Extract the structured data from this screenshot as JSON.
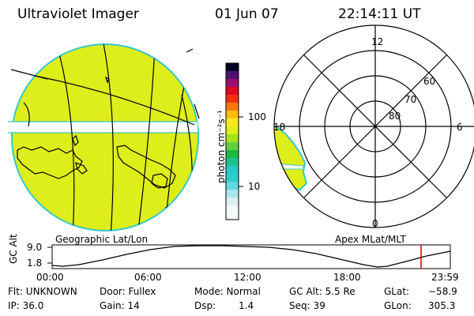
{
  "header": {
    "title": "Ultraviolet Imager",
    "date": "01 Jun 07",
    "time": "22:14:11 UT"
  },
  "colorbar": {
    "unit_label": "photon cm⁻²s⁻¹",
    "tick_high": "100",
    "tick_low": "10"
  },
  "geographic_panel": {
    "label": "Geographic Lat/Lon"
  },
  "polar_panel": {
    "label": "Apex MLat/MLT",
    "mlt_labels": [
      "12",
      "18",
      "6",
      "0"
    ],
    "lat_labels": [
      "60",
      "70",
      "80"
    ]
  },
  "altitude_plot": {
    "ylabel": "GC Alt",
    "yticks": [
      "9.0",
      "1.8"
    ],
    "xticks": [
      "00:00",
      "06:00",
      "12:00",
      "18:00",
      "23:59"
    ]
  },
  "footer": {
    "flt": "Flt: UNKNOWN",
    "ip": "IP: 36.0",
    "door": "Door: Fullex",
    "gain": "Gain: 14",
    "mode": "Mode: Normal",
    "dsp_label": "Dsp:",
    "dsp_value": "1.4",
    "gc_alt": "GC Alt: 5.5 Re",
    "seq": "Seq: 39",
    "glat_label": "GLat:",
    "glat_value": "−58.9",
    "glon_label": "GLon:",
    "glon_value": "305.3"
  },
  "colors": {
    "emission": "#DDEE1A",
    "limb": "#36C8C8",
    "marker": "#DD0000"
  }
}
